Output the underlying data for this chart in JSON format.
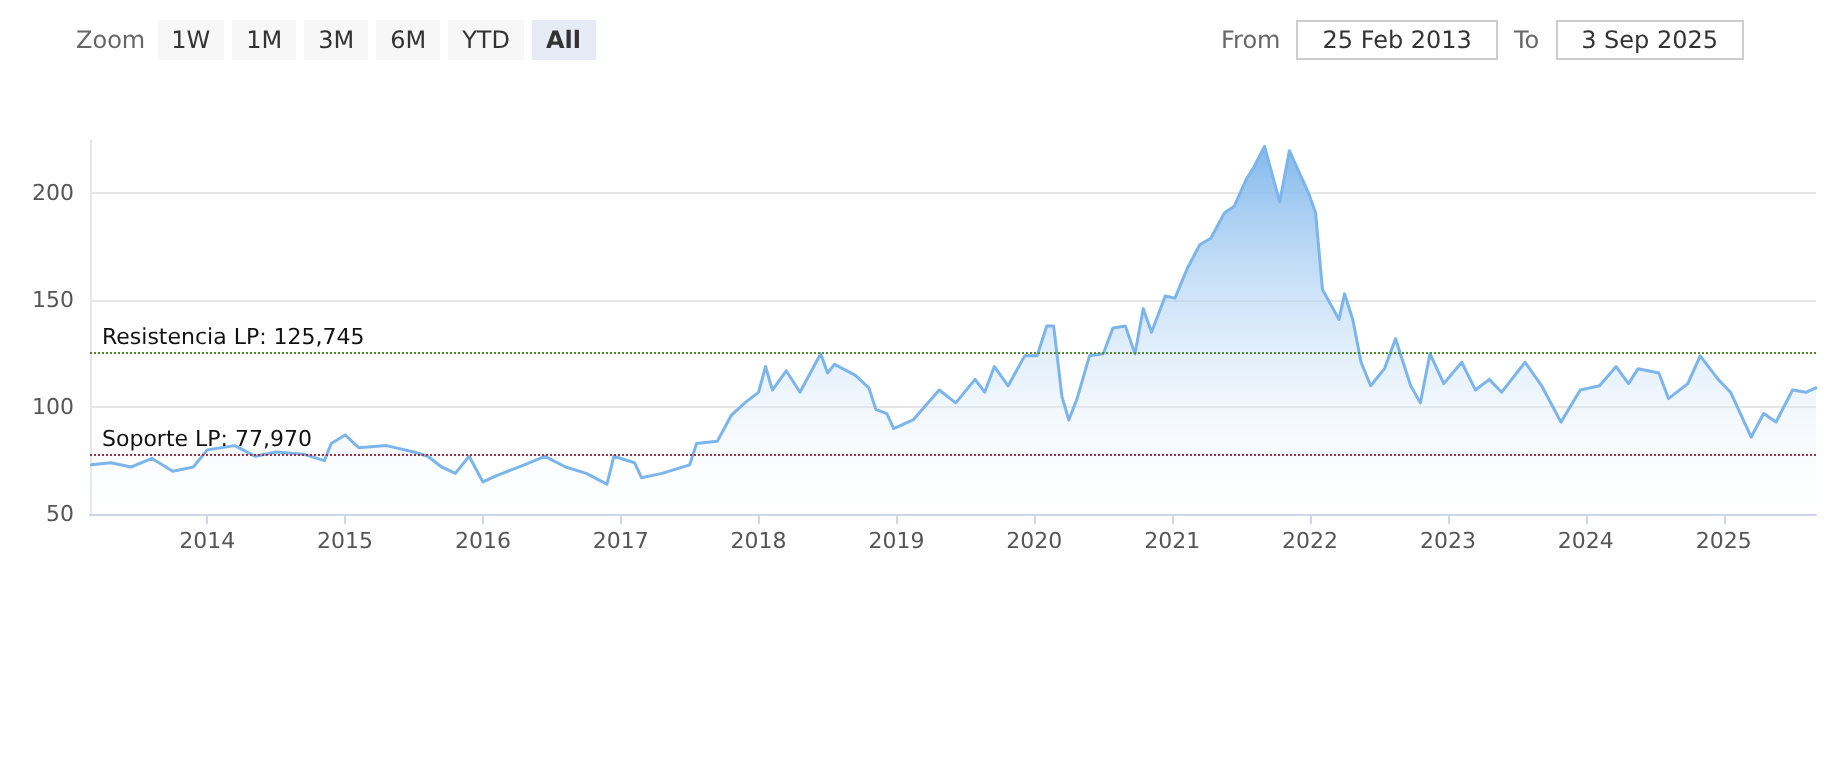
{
  "chart_data": {
    "type": "area",
    "x": [
      2013.16,
      2013.3,
      2013.45,
      2013.6,
      2013.75,
      2013.9,
      2014.0,
      2014.2,
      2014.35,
      2014.5,
      2014.7,
      2014.85,
      2014.9,
      2015.0,
      2015.1,
      2015.3,
      2015.5,
      2015.6,
      2015.7,
      2015.8,
      2015.9,
      2016.0,
      2016.1,
      2016.3,
      2016.45,
      2016.6,
      2016.75,
      2016.9,
      2016.95,
      2017.1,
      2017.15,
      2017.3,
      2017.5,
      2017.55,
      2017.7,
      2017.8,
      2017.9,
      2018.0,
      2018.05,
      2018.1,
      2018.2,
      2018.3,
      2018.45,
      2018.5,
      2018.55,
      2018.7,
      2018.8,
      2018.85,
      2018.93,
      2018.98,
      2019.12,
      2019.31,
      2019.43,
      2019.57,
      2019.64,
      2019.71,
      2019.81,
      2019.93,
      2020.02,
      2020.09,
      2020.14,
      2020.2,
      2020.25,
      2020.31,
      2020.4,
      2020.5,
      2020.57,
      2020.66,
      2020.73,
      2020.79,
      2020.85,
      2020.95,
      2021.02,
      2021.11,
      2021.2,
      2021.28,
      2021.38,
      2021.45,
      2021.54,
      2021.59,
      2021.67,
      2021.78,
      2021.85,
      2021.92,
      2021.99,
      2022.04,
      2022.09,
      2022.21,
      2022.25,
      2022.31,
      2022.37,
      2022.44,
      2022.54,
      2022.62,
      2022.73,
      2022.8,
      2022.87,
      2022.97,
      2023.1,
      2023.2,
      2023.3,
      2023.39,
      2023.56,
      2023.68,
      2023.82,
      2023.96,
      2024.1,
      2024.22,
      2024.31,
      2024.38,
      2024.53,
      2024.6,
      2024.74,
      2024.83,
      2024.96,
      2025.05,
      2025.15,
      2025.2,
      2025.29,
      2025.38,
      2025.5,
      2025.6,
      2025.67
    ],
    "series": [
      {
        "color": "#7cb5ec",
        "values": [
          73,
          74,
          72,
          76,
          70,
          72,
          80,
          82,
          77,
          79,
          78,
          75,
          83,
          87,
          81,
          82,
          79,
          77,
          72,
          69,
          77,
          65,
          68,
          73,
          77,
          72,
          69,
          64,
          77,
          74,
          67,
          69,
          73,
          83,
          84,
          96,
          102,
          107,
          119,
          108,
          117,
          107,
          125,
          116,
          120,
          115,
          109,
          99,
          97,
          90,
          94,
          108,
          102,
          113,
          107,
          119,
          110,
          124,
          124,
          138,
          138,
          105,
          94,
          104,
          124,
          125,
          137,
          138,
          125,
          146,
          135,
          152,
          151,
          165,
          176,
          179,
          191,
          194,
          207,
          212,
          222,
          196,
          220,
          210,
          200,
          191,
          155,
          141,
          153,
          141,
          121,
          110,
          118,
          132,
          110,
          102,
          125,
          111,
          121,
          108,
          113,
          107,
          121,
          110,
          93,
          108,
          110,
          119,
          111,
          118,
          116,
          104,
          111,
          124,
          113,
          107,
          93,
          86,
          97,
          93,
          108,
          107,
          109
        ]
      }
    ],
    "xlim": [
      2013.15,
      2025.67
    ],
    "xticks": [
      2014,
      2015,
      2016,
      2017,
      2018,
      2019,
      2020,
      2021,
      2022,
      2023,
      2024,
      2025
    ],
    "ylim": [
      50,
      225
    ],
    "yticks": [
      50,
      100,
      150,
      200
    ],
    "grid": "y",
    "marker": "none",
    "line_style": "solid",
    "ref_lines": [
      {
        "axis": "y",
        "value": 125.745,
        "label": "Resistencia LP: 125,745",
        "color": "#4c8a2e",
        "line_style": "dotted"
      },
      {
        "axis": "y",
        "value": 77.97,
        "label": "Soporte LP: 77,970",
        "color": "#a03040",
        "line_style": "dotted"
      }
    ],
    "annotations": [
      "Zoom",
      "1W",
      "1M",
      "3M",
      "6M",
      "YTD",
      "All",
      "From",
      "25 Feb 2013",
      "To",
      "3 Sep 2025"
    ]
  }
}
